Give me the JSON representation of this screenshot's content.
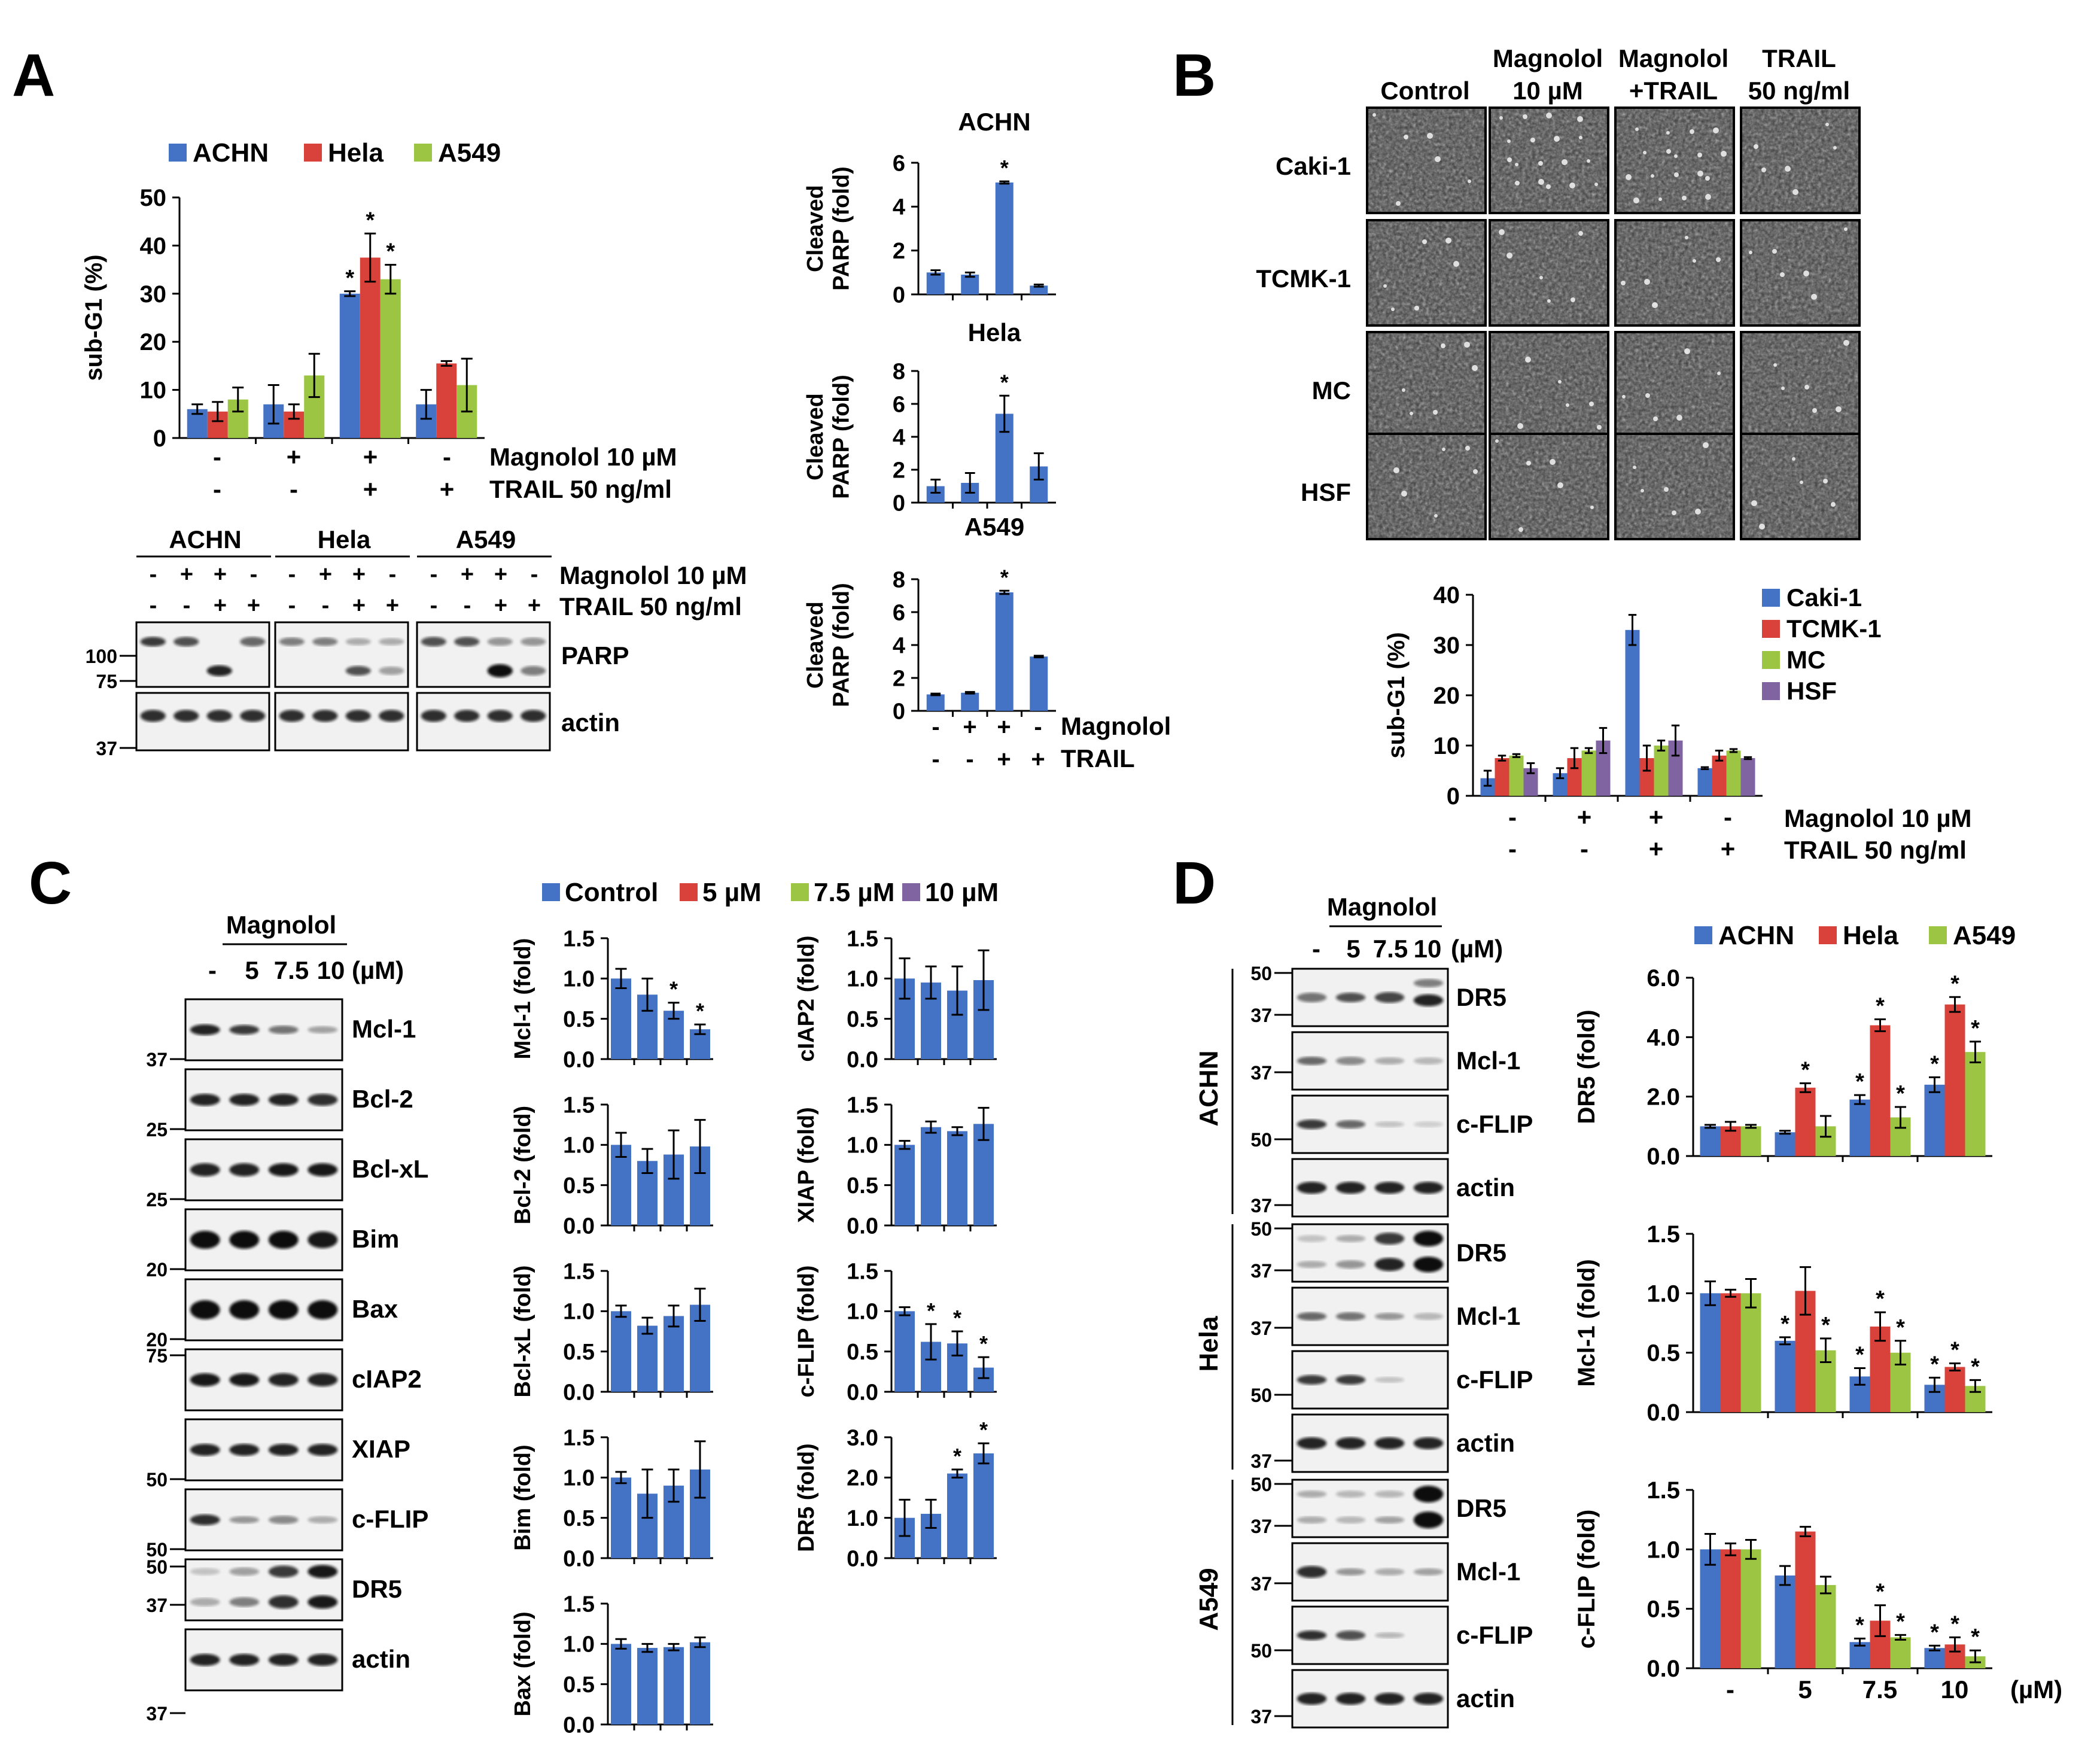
{
  "colors": {
    "blue": "#4472C4",
    "red": "#D9423A",
    "green": "#9BC542",
    "purple": "#8064A2"
  },
  "labels": {
    "A": "A",
    "B": "B",
    "C": "C",
    "D": "D"
  },
  "panelA": {
    "legend": [
      "ACHN",
      "Hela",
      "A549"
    ],
    "ylabel": "sub-G1 (%)",
    "yticks": [
      "0",
      "10",
      "20",
      "30",
      "40",
      "50"
    ],
    "cond_rows": [
      {
        "label": "Magnolol 10 µM",
        "signs": [
          "-",
          "+",
          "+",
          "-"
        ]
      },
      {
        "label": "TRAIL 50 ng/ml",
        "signs": [
          "-",
          "-",
          "+",
          "+"
        ]
      }
    ],
    "blot": {
      "groups": [
        "ACHN",
        "Hela",
        "A549"
      ],
      "rows": [
        {
          "label": "Magnolol 10 µM",
          "signs": [
            "-",
            "+",
            "+",
            "-"
          ]
        },
        {
          "label": "TRAIL 50 ng/ml",
          "signs": [
            "-",
            "-",
            "+",
            "+"
          ]
        }
      ],
      "bands": [
        "PARP",
        "actin"
      ],
      "markers": [
        "100",
        "75",
        "37"
      ]
    }
  },
  "panelA_parp": {
    "titles": [
      "ACHN",
      "Hela",
      "A549"
    ],
    "ylabel": [
      "Cleaved",
      "PARP (fold)"
    ],
    "yticks": [
      [
        "0",
        "2",
        "4",
        "6"
      ],
      [
        "0",
        "2",
        "4",
        "6",
        "8"
      ],
      [
        "0",
        "2",
        "4",
        "6",
        "8"
      ]
    ],
    "cond_rows": [
      {
        "label": "Magnolol",
        "signs": [
          "-",
          "+",
          "+",
          "-"
        ]
      },
      {
        "label": "TRAIL",
        "signs": [
          "-",
          "-",
          "+",
          "+"
        ]
      }
    ]
  },
  "panelB": {
    "columns": [
      "Control",
      "Magnolol\n10 µM",
      "Magnolol\n+TRAIL",
      "TRAIL\n50 ng/ml"
    ],
    "rows": [
      "Caki-1",
      "TCMK-1",
      "MC",
      "HSF"
    ],
    "legend": [
      "Caki-1",
      "TCMK-1",
      "MC",
      "HSF"
    ],
    "ylabel": "sub-G1 (%)",
    "yticks": [
      "0",
      "10",
      "20",
      "30",
      "40"
    ],
    "cond_rows": [
      {
        "label": "Magnolol 10 µM",
        "signs": [
          "-",
          "+",
          "+",
          "-"
        ]
      },
      {
        "label": "TRAIL 50 ng/ml",
        "signs": [
          "-",
          "-",
          "+",
          "+"
        ]
      }
    ]
  },
  "panelC": {
    "header": "Magnolol",
    "doses": [
      "-",
      "5",
      "7.5",
      "10"
    ],
    "unit": "(µM)",
    "bands": [
      "Mcl-1",
      "Bcl-2",
      "Bcl-xL",
      "Bim",
      "Bax",
      "cIAP2",
      "XIAP",
      "c-FLIP",
      "DR5",
      "actin"
    ],
    "markers": [
      {
        "band": 0,
        "label": "37"
      },
      {
        "band": 1,
        "label": "25"
      },
      {
        "band": 2,
        "label": "25"
      },
      {
        "band": 3,
        "label": "20"
      },
      {
        "band": 4,
        "label": "20"
      },
      {
        "band": 5,
        "label": "75"
      },
      {
        "band": 6,
        "label": "50"
      },
      {
        "band": 7,
        "label": "50"
      },
      {
        "band": 8,
        "label": "50"
      },
      {
        "band": 8,
        "label": "37"
      },
      {
        "band": 9,
        "label": "37"
      }
    ],
    "legend": [
      "Control",
      "5 µM",
      "7.5 µM",
      "10 µM"
    ],
    "charts_left": [
      "Mcl-1 (fold)",
      "Bcl-2 (fold)",
      "Bcl-xL (fold)",
      "Bim (fold)",
      "Bax (fold)"
    ],
    "charts_right": [
      "cIAP2 (fold)",
      "XIAP (fold)",
      "c-FLIP (fold)",
      "DR5 (fold)"
    ],
    "yticks": [
      "0.0",
      "0.5",
      "1.0",
      "1.5"
    ],
    "yticks_dr5": [
      "0.0",
      "1.0",
      "2.0",
      "3.0"
    ]
  },
  "panelD": {
    "header": "Magnolol",
    "doses": [
      "-",
      "5",
      "7.5",
      "10"
    ],
    "unit": "(µM)",
    "cells": [
      "ACHN",
      "Hela",
      "A549"
    ],
    "bands": [
      "DR5",
      "Mcl-1",
      "c-FLIP",
      "actin"
    ],
    "markers": [
      "50",
      "37",
      "37",
      "50",
      "37"
    ],
    "legend": [
      "ACHN",
      "Hela",
      "A549"
    ],
    "charts": [
      "DR5 (fold)",
      "Mcl-1 (fold)",
      "c-FLIP (fold)"
    ],
    "yticks_dr5": [
      "0.0",
      "2.0",
      "4.0",
      "6.0"
    ],
    "yticks": [
      "0.0",
      "0.5",
      "1.0",
      "1.5"
    ],
    "xlabels": [
      "-",
      "5",
      "7.5",
      "10"
    ],
    "xunit": "(µM)"
  },
  "star": "*",
  "chart_data": [
    {
      "id": "A-subG1",
      "type": "bar",
      "categories": [
        "1",
        "2",
        "3",
        "4"
      ],
      "ylim": [
        0,
        50
      ],
      "series": [
        {
          "name": "ACHN",
          "values": [
            6,
            7,
            30,
            7
          ],
          "err": [
            1,
            4,
            0.5,
            3
          ],
          "sig": [
            0,
            0,
            1,
            0
          ]
        },
        {
          "name": "Hela",
          "values": [
            5.5,
            5.5,
            37.5,
            15.5
          ],
          "err": [
            2,
            1.5,
            5,
            0.5
          ],
          "sig": [
            0,
            0,
            1,
            0
          ]
        },
        {
          "name": "A549",
          "values": [
            8,
            13,
            33,
            11
          ],
          "err": [
            2.5,
            4.5,
            3,
            5.5
          ],
          "sig": [
            0,
            0,
            1,
            0
          ]
        }
      ]
    },
    {
      "id": "A-PARP-ACHN",
      "type": "bar",
      "categories": [
        "1",
        "2",
        "3",
        "4"
      ],
      "ylim": [
        0,
        6
      ],
      "series": [
        {
          "name": "ACHN",
          "values": [
            1,
            0.9,
            5.1,
            0.4
          ],
          "err": [
            0.1,
            0.1,
            0.05,
            0.05
          ],
          "sig": [
            0,
            0,
            1,
            0
          ]
        }
      ]
    },
    {
      "id": "A-PARP-Hela",
      "type": "bar",
      "categories": [
        "1",
        "2",
        "3",
        "4"
      ],
      "ylim": [
        0,
        8
      ],
      "series": [
        {
          "name": "Hela",
          "values": [
            1,
            1.2,
            5.4,
            2.2
          ],
          "err": [
            0.4,
            0.6,
            1.1,
            0.8
          ],
          "sig": [
            0,
            0,
            1,
            0
          ]
        }
      ]
    },
    {
      "id": "A-PARP-A549",
      "type": "bar",
      "categories": [
        "1",
        "2",
        "3",
        "4"
      ],
      "ylim": [
        0,
        8
      ],
      "series": [
        {
          "name": "A549",
          "values": [
            1,
            1.1,
            7.2,
            3.3
          ],
          "err": [
            0.05,
            0.05,
            0.1,
            0.05
          ],
          "sig": [
            0,
            0,
            1,
            0
          ]
        }
      ]
    },
    {
      "id": "B-subG1",
      "type": "bar",
      "categories": [
        "1",
        "2",
        "3",
        "4"
      ],
      "ylim": [
        0,
        40
      ],
      "series": [
        {
          "name": "Caki-1",
          "values": [
            3.5,
            4.5,
            33,
            5.5
          ],
          "err": [
            1.5,
            1,
            3,
            0.2
          ],
          "sig": [
            0,
            0,
            0,
            0
          ]
        },
        {
          "name": "TCMK-1",
          "values": [
            7.5,
            7.5,
            7.5,
            8
          ],
          "err": [
            0.5,
            2,
            2.5,
            1
          ],
          "sig": [
            0,
            0,
            0,
            0
          ]
        },
        {
          "name": "MC",
          "values": [
            8,
            9,
            10,
            9
          ],
          "err": [
            0.3,
            0.5,
            1,
            0.3
          ],
          "sig": [
            0,
            0,
            0,
            0
          ]
        },
        {
          "name": "HSF",
          "values": [
            5.5,
            11,
            11,
            7.5
          ],
          "err": [
            1,
            2.5,
            3,
            0.2
          ],
          "sig": [
            0,
            0,
            0,
            0
          ]
        }
      ]
    },
    {
      "id": "C-Mcl-1",
      "type": "bar",
      "categories": [
        "-",
        "5",
        "7.5",
        "10"
      ],
      "ylim": [
        0,
        1.5
      ],
      "series": [
        {
          "name": "Mcl-1",
          "values": [
            1,
            0.8,
            0.6,
            0.37
          ],
          "err": [
            0.12,
            0.2,
            0.1,
            0.06
          ],
          "sig": [
            0,
            0,
            1,
            1
          ]
        }
      ]
    },
    {
      "id": "C-Bcl-2",
      "type": "bar",
      "categories": [
        "-",
        "5",
        "7.5",
        "10"
      ],
      "ylim": [
        0,
        1.5
      ],
      "series": [
        {
          "name": "Bcl-2",
          "values": [
            1,
            0.8,
            0.88,
            0.98
          ],
          "err": [
            0.15,
            0.15,
            0.3,
            0.33
          ],
          "sig": [
            0,
            0,
            0,
            0
          ]
        }
      ]
    },
    {
      "id": "C-Bcl-xL",
      "type": "bar",
      "categories": [
        "-",
        "5",
        "7.5",
        "10"
      ],
      "ylim": [
        0,
        1.5
      ],
      "series": [
        {
          "name": "Bcl-xL",
          "values": [
            1,
            0.82,
            0.94,
            1.08
          ],
          "err": [
            0.07,
            0.1,
            0.13,
            0.2
          ],
          "sig": [
            0,
            0,
            0,
            0
          ]
        }
      ]
    },
    {
      "id": "C-Bim",
      "type": "bar",
      "categories": [
        "-",
        "5",
        "7.5",
        "10"
      ],
      "ylim": [
        0,
        1.5
      ],
      "series": [
        {
          "name": "Bim",
          "values": [
            1,
            0.8,
            0.9,
            1.1
          ],
          "err": [
            0.07,
            0.3,
            0.2,
            0.35
          ],
          "sig": [
            0,
            0,
            0,
            0
          ]
        }
      ]
    },
    {
      "id": "C-Bax",
      "type": "bar",
      "categories": [
        "-",
        "5",
        "7.5",
        "10"
      ],
      "ylim": [
        0,
        1.5
      ],
      "series": [
        {
          "name": "Bax",
          "values": [
            1,
            0.95,
            0.96,
            1.02
          ],
          "err": [
            0.06,
            0.05,
            0.04,
            0.06
          ],
          "sig": [
            0,
            0,
            0,
            0
          ]
        }
      ]
    },
    {
      "id": "C-cIAP2",
      "type": "bar",
      "categories": [
        "-",
        "5",
        "7.5",
        "10"
      ],
      "ylim": [
        0,
        1.5
      ],
      "series": [
        {
          "name": "cIAP2",
          "values": [
            1,
            0.95,
            0.85,
            0.98
          ],
          "err": [
            0.25,
            0.2,
            0.3,
            0.37
          ],
          "sig": [
            0,
            0,
            0,
            0
          ]
        }
      ]
    },
    {
      "id": "C-XIAP",
      "type": "bar",
      "categories": [
        "-",
        "5",
        "7.5",
        "10"
      ],
      "ylim": [
        0,
        1.5
      ],
      "series": [
        {
          "name": "XIAP",
          "values": [
            1,
            1.22,
            1.17,
            1.26
          ],
          "err": [
            0.05,
            0.07,
            0.05,
            0.2
          ],
          "sig": [
            0,
            0,
            0,
            0
          ]
        }
      ]
    },
    {
      "id": "C-c-FLIP",
      "type": "bar",
      "categories": [
        "-",
        "5",
        "7.5",
        "10"
      ],
      "ylim": [
        0,
        1.5
      ],
      "series": [
        {
          "name": "c-FLIP",
          "values": [
            1,
            0.62,
            0.6,
            0.3
          ],
          "err": [
            0.05,
            0.22,
            0.15,
            0.13
          ],
          "sig": [
            0,
            1,
            1,
            1
          ]
        }
      ]
    },
    {
      "id": "C-DR5",
      "type": "bar",
      "categories": [
        "-",
        "5",
        "7.5",
        "10"
      ],
      "ylim": [
        0,
        3
      ],
      "series": [
        {
          "name": "DR5",
          "values": [
            1,
            1.1,
            2.1,
            2.6
          ],
          "err": [
            0.45,
            0.35,
            0.1,
            0.25
          ],
          "sig": [
            0,
            0,
            1,
            1
          ]
        }
      ]
    },
    {
      "id": "D-DR5",
      "type": "bar",
      "categories": [
        "-",
        "5",
        "7.5",
        "10"
      ],
      "ylim": [
        0,
        6
      ],
      "series": [
        {
          "name": "ACHN",
          "values": [
            1,
            0.8,
            1.9,
            2.4
          ],
          "err": [
            0.05,
            0.05,
            0.15,
            0.25
          ],
          "sig": [
            0,
            0,
            1,
            1
          ]
        },
        {
          "name": "Hela",
          "values": [
            1,
            2.3,
            4.4,
            5.1
          ],
          "err": [
            0.15,
            0.15,
            0.2,
            0.25
          ],
          "sig": [
            0,
            1,
            1,
            1
          ]
        },
        {
          "name": "A549",
          "values": [
            1,
            1,
            1.3,
            3.5
          ],
          "err": [
            0.05,
            0.35,
            0.35,
            0.35
          ],
          "sig": [
            0,
            0,
            1,
            1
          ]
        }
      ]
    },
    {
      "id": "D-Mcl-1",
      "type": "bar",
      "categories": [
        "-",
        "5",
        "7.5",
        "10"
      ],
      "ylim": [
        0,
        1.5
      ],
      "series": [
        {
          "name": "ACHN",
          "values": [
            1,
            0.6,
            0.3,
            0.23
          ],
          "err": [
            0.1,
            0.03,
            0.07,
            0.06
          ],
          "sig": [
            0,
            1,
            1,
            1
          ]
        },
        {
          "name": "Hela",
          "values": [
            1,
            1.02,
            0.72,
            0.38
          ],
          "err": [
            0.03,
            0.2,
            0.12,
            0.03
          ],
          "sig": [
            0,
            0,
            1,
            1
          ]
        },
        {
          "name": "A549",
          "values": [
            1,
            0.52,
            0.5,
            0.22
          ],
          "err": [
            0.12,
            0.1,
            0.1,
            0.05
          ],
          "sig": [
            0,
            1,
            1,
            1
          ]
        }
      ]
    },
    {
      "id": "D-c-FLIP",
      "type": "bar",
      "categories": [
        "-",
        "5",
        "7.5",
        "10"
      ],
      "ylim": [
        0,
        1.5
      ],
      "series": [
        {
          "name": "ACHN",
          "values": [
            1,
            0.78,
            0.22,
            0.17
          ],
          "err": [
            0.13,
            0.08,
            0.03,
            0.02
          ],
          "sig": [
            0,
            0,
            1,
            1
          ]
        },
        {
          "name": "Hela",
          "values": [
            1,
            1.15,
            0.4,
            0.2
          ],
          "err": [
            0.05,
            0.04,
            0.13,
            0.06
          ],
          "sig": [
            0,
            0,
            1,
            1
          ]
        },
        {
          "name": "A549",
          "values": [
            1,
            0.7,
            0.26,
            0.1
          ],
          "err": [
            0.08,
            0.07,
            0.02,
            0.05
          ],
          "sig": [
            0,
            0,
            1,
            1
          ]
        }
      ]
    }
  ]
}
